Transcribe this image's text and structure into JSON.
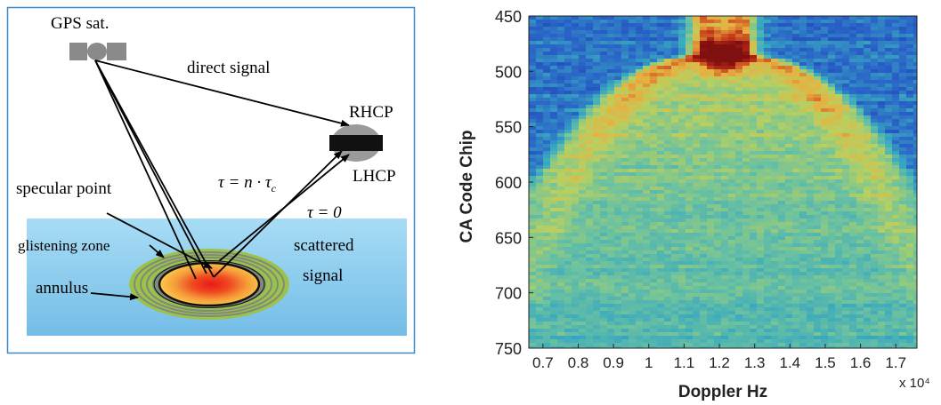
{
  "diagram": {
    "labels": {
      "gps": "GPS sat.",
      "direct": "direct signal",
      "rhcp": "RHCP",
      "lhcp": "LHCP",
      "tau_n": "τ = n · τ",
      "tau_n_sub": "c",
      "tau_0": "τ = 0",
      "specular": "specular point",
      "glistening": "glistening zone",
      "annulus": "annulus",
      "scattered_1": "scattered",
      "scattered_2": "signal"
    },
    "colors": {
      "border": "#3a8ac8",
      "water_top": "#a8dcf5",
      "water_bottom": "#74bde6",
      "satellite": "#8a8a8a",
      "antenna": "#111111",
      "antenna_shell": "#9a9a9a",
      "ring_green": "#9cc24a",
      "ring_gray": "#7f8a7a",
      "core_orange": "#f59a3a",
      "core_red": "#e81a1a",
      "core_yellow": "#ffd24a"
    }
  },
  "chart_data": {
    "type": "heatmap",
    "title": "",
    "xlabel": "Doppler Hz",
    "ylabel": "CA Code Chip",
    "x_multiplier": "x 10⁴",
    "x_ticks": [
      "0.7",
      "0.8",
      "0.9",
      "1",
      "1.1",
      "1.2",
      "1.3",
      "1.4",
      "1.5",
      "1.6",
      "1.7"
    ],
    "x_tick_values": [
      0.7,
      0.8,
      0.9,
      1.0,
      1.1,
      1.2,
      1.3,
      1.4,
      1.5,
      1.6,
      1.7
    ],
    "y_ticks": [
      "450",
      "500",
      "550",
      "600",
      "650",
      "700",
      "750"
    ],
    "y_tick_values": [
      450,
      500,
      550,
      600,
      650,
      700,
      750
    ],
    "xlim": [
      0.66,
      1.76
    ],
    "ylim": [
      450,
      750
    ],
    "y_inverted": true,
    "peak": {
      "x": 1.2,
      "y": 485
    },
    "colormap": [
      "#1a3aa8",
      "#2a64c8",
      "#38a8c0",
      "#6cc2a0",
      "#b8d060",
      "#e8b040",
      "#c03018",
      "#801010"
    ]
  }
}
